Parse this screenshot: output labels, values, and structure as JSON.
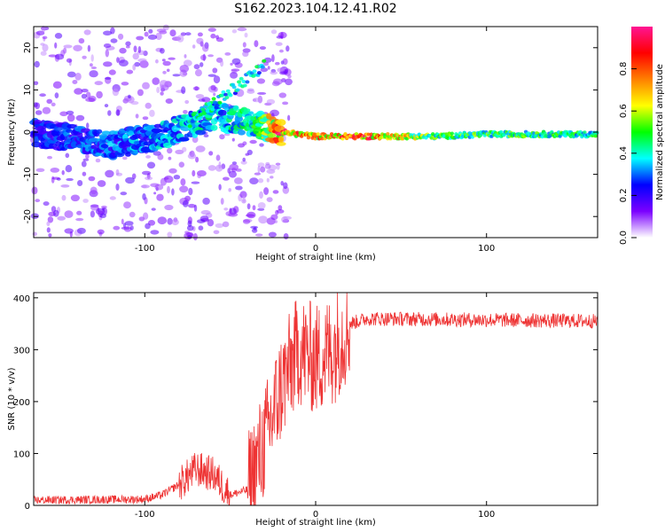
{
  "figure": {
    "title": "S162.2023.104.12.41.R02"
  },
  "chart_data": [
    {
      "type": "heatmap",
      "xlabel": "Height of straight line (km)",
      "ylabel": "Frequency (Hz)",
      "xlim": [
        -165,
        165
      ],
      "ylim": [
        -25,
        25
      ],
      "xticks": [
        -100,
        0,
        100
      ],
      "yticks": [
        -20,
        -10,
        0,
        10,
        20
      ],
      "colorbar": {
        "label": "Normalized spectral amplitude",
        "range": [
          0,
          1
        ],
        "ticks": [
          "0.0",
          "0.2",
          "0.4",
          "0.6",
          "0.8"
        ],
        "colormap": [
          "#ffffff",
          "#7b00ff",
          "#0000ff",
          "#00ffff",
          "#00ff00",
          "#ffff00",
          "#ff8000",
          "#ff0000",
          "#ff1493"
        ]
      },
      "ridge": {
        "description_points_x": [
          -165,
          -120,
          -90,
          -60,
          -35,
          -20,
          0,
          20,
          70,
          100,
          165
        ],
        "frequency_y": [
          0,
          -3,
          -1,
          4,
          2,
          0,
          -1,
          -1,
          -1,
          -0.5,
          -0.5
        ],
        "amplitude": [
          0.25,
          0.3,
          0.35,
          0.4,
          0.45,
          0.85,
          0.7,
          0.9,
          0.5,
          0.5,
          0.45
        ]
      }
    },
    {
      "type": "line",
      "xlabel": "Height of straight line (km)",
      "ylabel": "SNR (10 * v/v)",
      "xlim": [
        -165,
        165
      ],
      "ylim": [
        0,
        410
      ],
      "xticks": [
        -100,
        0,
        100
      ],
      "yticks": [
        0,
        100,
        200,
        300,
        400
      ],
      "color": "#ee3333",
      "envelope": {
        "x": [
          -165,
          -100,
          -90,
          -80,
          -70,
          -60,
          -50,
          -40,
          -30,
          -20,
          -10,
          0,
          10,
          20,
          30,
          165
        ],
        "y": [
          10,
          12,
          20,
          40,
          70,
          60,
          20,
          30,
          120,
          230,
          300,
          280,
          300,
          350,
          360,
          355
        ]
      }
    }
  ]
}
